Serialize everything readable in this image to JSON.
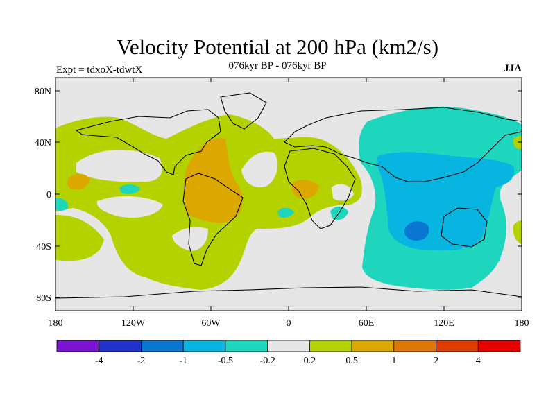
{
  "title": "Velocity Potential at 200 hPa (km2/s)",
  "subtitle": "076kyr BP - 076kyr BP",
  "experiment": "Expt = tdxoX-tdwtX",
  "season": "JJA",
  "map": {
    "lon_range": [
      -180,
      180
    ],
    "lat_range": [
      -90,
      90
    ],
    "x_ticks": [
      "180",
      "120W",
      "60W",
      "0",
      "60E",
      "120E",
      "180"
    ],
    "y_ticks": [
      "80N",
      "40N",
      "0",
      "40S",
      "80S"
    ],
    "background_color": "#e6e6e6"
  },
  "colorbar": {
    "colors": [
      "#7a14d2",
      "#2233cc",
      "#0a78d2",
      "#08b4e0",
      "#1ed6be",
      "#e6e6e6",
      "#b4d200",
      "#dca800",
      "#e07808",
      "#e03c00",
      "#e60000"
    ],
    "labels": [
      "-4",
      "-2",
      "-1",
      "-0.5",
      "-0.2",
      "0.2",
      "0.5",
      "1",
      "2",
      "4"
    ]
  }
}
